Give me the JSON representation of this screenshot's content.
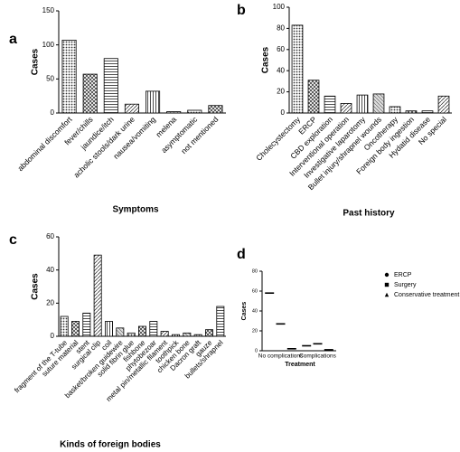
{
  "chart_data": [
    {
      "type": "bar",
      "label": "a",
      "xlabel": "Symptoms",
      "ylabel": "Cases",
      "color": "#000000",
      "categories": [
        "abdominal discomfort",
        "fever/chills",
        "jaundice/itch",
        "acholic stools/dark urine",
        "nausea/vomiting",
        "melena",
        "asymptomatic",
        "not mentioned"
      ],
      "values": [
        107,
        57,
        80,
        13,
        32,
        2,
        4,
        11
      ],
      "ylim": [
        0,
        150
      ],
      "yticks": [
        0,
        50,
        100,
        150
      ]
    },
    {
      "type": "bar",
      "label": "b",
      "xlabel": "Past history",
      "ylabel": "Cases",
      "color": "#000000",
      "categories": [
        "Cholecystectomy",
        "ERCP",
        "CBD exploration",
        "Interventional operation",
        "Investigative laparotomy",
        "Bullet injury/shrapnel wounds",
        "Oncotherapy",
        "Foreign body ingestion",
        "Hydatid disease",
        "No special"
      ],
      "values": [
        83,
        31,
        16,
        9,
        17,
        18,
        6,
        2,
        2,
        16
      ],
      "ylim": [
        0,
        100
      ],
      "yticks": [
        0,
        20,
        40,
        60,
        80,
        100
      ]
    },
    {
      "type": "bar",
      "label": "c",
      "xlabel": "Kinds of foreign bodies",
      "ylabel": "Cases",
      "color": "#000000",
      "categories": [
        "fragment of the T-tube",
        "suture material",
        "stent",
        "surgical clip",
        "coil",
        "basket/broken guidewire",
        "solid fibrin glue",
        "fishbone",
        "phytobezoar",
        "metal pin/metallic filament",
        "toothpick",
        "chicken bone",
        "Dacron graft",
        "gauze",
        "bullets/shrapnel"
      ],
      "values": [
        12,
        9,
        14,
        49,
        9,
        5,
        2,
        6,
        9,
        3,
        1,
        2,
        1,
        4,
        18
      ],
      "ylim": [
        0,
        60
      ],
      "yticks": [
        0,
        20,
        40,
        60
      ]
    },
    {
      "type": "dot",
      "label": "d",
      "xlabel": "Treatment",
      "ylabel": "Cases",
      "categories": [
        "No complications",
        "Complications"
      ],
      "series": [
        {
          "name": "ERCP",
          "color": "#000000",
          "marker": "circle",
          "values": [
            58,
            5
          ]
        },
        {
          "name": "Surgery",
          "color": "#000000",
          "marker": "square",
          "values": [
            27,
            7
          ]
        },
        {
          "name": "Conservative treatment",
          "color": "#000000",
          "marker": "triangle",
          "values": [
            2,
            1
          ]
        }
      ],
      "ylim": [
        0,
        80
      ],
      "yticks": [
        0,
        20,
        40,
        60,
        80
      ]
    }
  ]
}
